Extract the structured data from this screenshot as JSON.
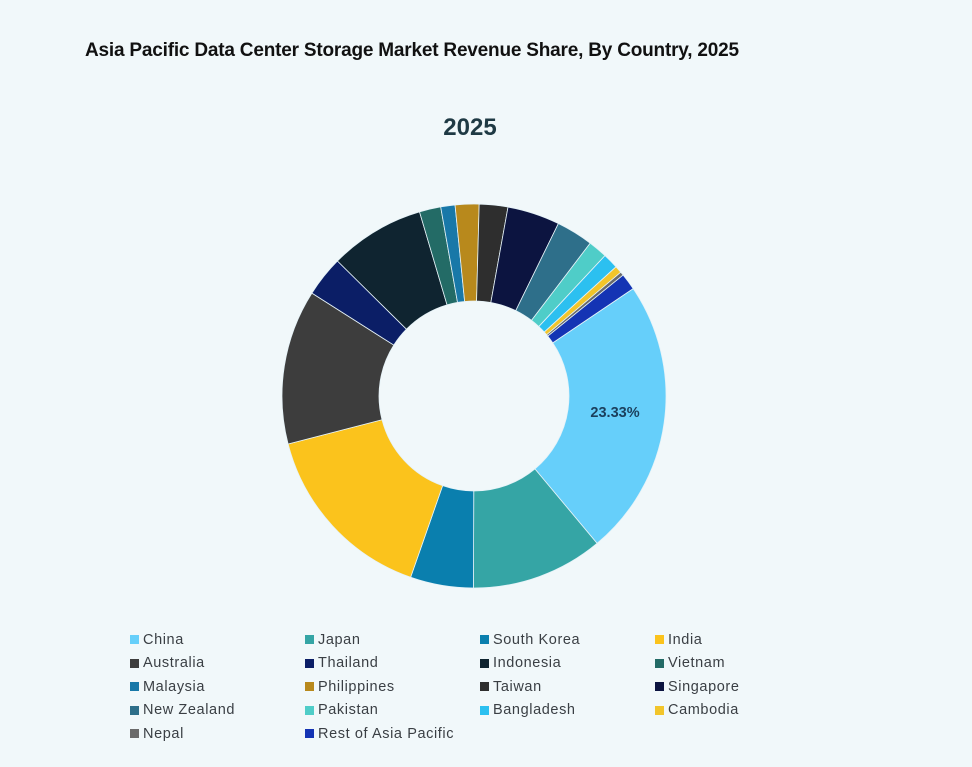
{
  "title": "Asia Pacific Data Center Storage Market Revenue Share, By Country, 2025",
  "subtitle": "2025",
  "chart_data": {
    "type": "pie",
    "variant": "donut",
    "title": "Asia Pacific Data Center Storage Market Revenue Share, By Country, 2025",
    "subtitle": "2025",
    "start_angle_deg": 56,
    "direction": "clockwise",
    "legend_position": "bottom",
    "data_labels": [
      {
        "category": "China",
        "label": "23.33%"
      }
    ],
    "categories": [
      "China",
      "Japan",
      "South Korea",
      "India",
      "Australia",
      "Thailand",
      "Indonesia",
      "Vietnam",
      "Malaysia",
      "Philippines",
      "Taiwan",
      "Singapore",
      "New Zealand",
      "Pakistan",
      "Bangladesh",
      "Cambodia",
      "Nepal",
      "Rest of Asia Pacific"
    ],
    "values": [
      23.33,
      11.1,
      5.3,
      15.6,
      13.0,
      3.4,
      8.0,
      1.8,
      1.2,
      2.0,
      2.4,
      4.4,
      3.1,
      1.6,
      1.3,
      0.6,
      0.3,
      1.4
    ],
    "colors": [
      "#66cffa",
      "#35a5a5",
      "#0a7fae",
      "#fbc31c",
      "#3d3d3d",
      "#0b1e66",
      "#0f2430",
      "#236b66",
      "#1878a8",
      "#b8891c",
      "#2e2e2e",
      "#0c1440",
      "#2e6f8a",
      "#4fcdc8",
      "#2cc0f0",
      "#f2c52a",
      "#6a6a6a",
      "#1434b4"
    ]
  },
  "center_label": {
    "text": "23.33%",
    "color": "#1b3f5c"
  },
  "legend": [
    {
      "label": "China",
      "color": "#66cffa"
    },
    {
      "label": "Japan",
      "color": "#35a5a5"
    },
    {
      "label": "South Korea",
      "color": "#0a7fae"
    },
    {
      "label": "India",
      "color": "#fbc31c"
    },
    {
      "label": "Australia",
      "color": "#3d3d3d"
    },
    {
      "label": "Thailand",
      "color": "#0b1e66"
    },
    {
      "label": "Indonesia",
      "color": "#0f2430"
    },
    {
      "label": "Vietnam",
      "color": "#236b66"
    },
    {
      "label": "Malaysia",
      "color": "#1878a8"
    },
    {
      "label": "Philippines",
      "color": "#b8891c"
    },
    {
      "label": "Taiwan",
      "color": "#2e2e2e"
    },
    {
      "label": "Singapore",
      "color": "#0c1440"
    },
    {
      "label": "New Zealand",
      "color": "#2e6f8a"
    },
    {
      "label": "Pakistan",
      "color": "#4fcdc8"
    },
    {
      "label": "Bangladesh",
      "color": "#2cc0f0"
    },
    {
      "label": "Cambodia",
      "color": "#f2c52a"
    },
    {
      "label": "Nepal",
      "color": "#6a6a6a"
    },
    {
      "label": "Rest of Asia Pacific",
      "color": "#1434b4"
    }
  ]
}
